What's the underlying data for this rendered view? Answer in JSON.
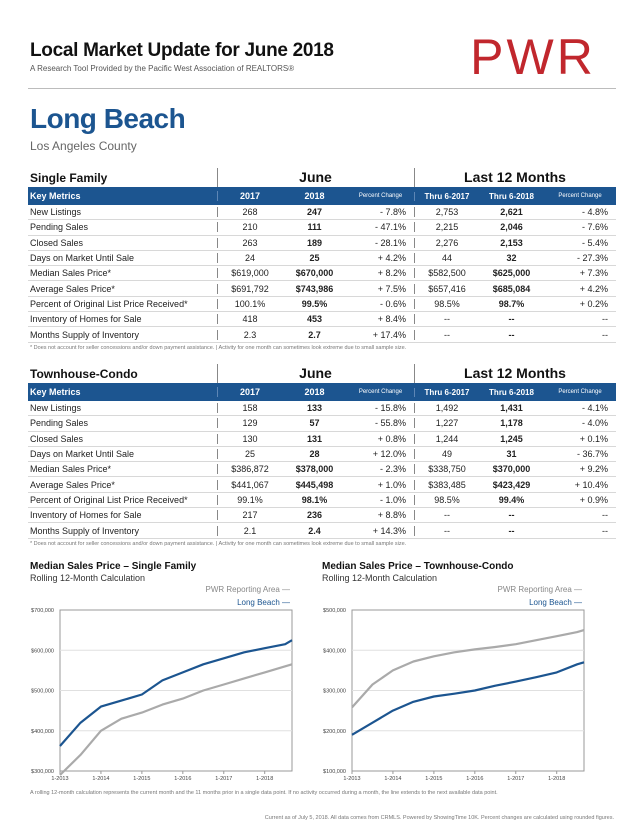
{
  "header": {
    "title": "Local Market Update for June 2018",
    "subtitle": "A Research Tool Provided by the Pacific West Association of REALTORS®",
    "logo_text": "PWR",
    "logo_color": "#c1272d"
  },
  "location": {
    "city": "Long Beach",
    "county": "Los Angeles County"
  },
  "tables": [
    {
      "category": "Single Family",
      "group_june": "June",
      "group_ltm": "Last 12 Months",
      "headers": [
        "Key Metrics",
        "2017",
        "2018",
        "Percent Change",
        "Thru 6-2017",
        "Thru 6-2018",
        "Percent Change"
      ],
      "rows": [
        [
          "New Listings",
          "268",
          "247",
          "- 7.8%",
          "2,753",
          "2,621",
          "- 4.8%"
        ],
        [
          "Pending Sales",
          "210",
          "111",
          "- 47.1%",
          "2,215",
          "2,046",
          "- 7.6%"
        ],
        [
          "Closed Sales",
          "263",
          "189",
          "- 28.1%",
          "2,276",
          "2,153",
          "- 5.4%"
        ],
        [
          "Days on Market Until Sale",
          "24",
          "25",
          "+ 4.2%",
          "44",
          "32",
          "- 27.3%"
        ],
        [
          "Median Sales Price*",
          "$619,000",
          "$670,000",
          "+ 8.2%",
          "$582,500",
          "$625,000",
          "+ 7.3%"
        ],
        [
          "Average Sales Price*",
          "$691,792",
          "$743,986",
          "+ 7.5%",
          "$657,416",
          "$685,084",
          "+ 4.2%"
        ],
        [
          "Percent of Original List Price Received*",
          "100.1%",
          "99.5%",
          "- 0.6%",
          "98.5%",
          "98.7%",
          "+ 0.2%"
        ],
        [
          "Inventory of Homes for Sale",
          "418",
          "453",
          "+ 8.4%",
          "--",
          "--",
          "--"
        ],
        [
          "Months Supply of Inventory",
          "2.3",
          "2.7",
          "+ 17.4%",
          "--",
          "--",
          "--"
        ]
      ],
      "note": "* Does not account for seller concessions and/or down payment assistance.  |  Activity for one month can sometimes look extreme due to small sample size."
    },
    {
      "category": "Townhouse-Condo",
      "group_june": "June",
      "group_ltm": "Last 12 Months",
      "headers": [
        "Key Metrics",
        "2017",
        "2018",
        "Percent Change",
        "Thru 6-2017",
        "Thru 6-2018",
        "Percent Change"
      ],
      "rows": [
        [
          "New Listings",
          "158",
          "133",
          "- 15.8%",
          "1,492",
          "1,431",
          "- 4.1%"
        ],
        [
          "Pending Sales",
          "129",
          "57",
          "- 55.8%",
          "1,227",
          "1,178",
          "- 4.0%"
        ],
        [
          "Closed Sales",
          "130",
          "131",
          "+ 0.8%",
          "1,244",
          "1,245",
          "+ 0.1%"
        ],
        [
          "Days on Market Until Sale",
          "25",
          "28",
          "+ 12.0%",
          "49",
          "31",
          "- 36.7%"
        ],
        [
          "Median Sales Price*",
          "$386,872",
          "$378,000",
          "- 2.3%",
          "$338,750",
          "$370,000",
          "+ 9.2%"
        ],
        [
          "Average Sales Price*",
          "$441,067",
          "$445,498",
          "+ 1.0%",
          "$383,485",
          "$423,429",
          "+ 10.4%"
        ],
        [
          "Percent of Original List Price Received*",
          "99.1%",
          "98.1%",
          "- 1.0%",
          "98.5%",
          "99.4%",
          "+ 0.9%"
        ],
        [
          "Inventory of Homes for Sale",
          "217",
          "236",
          "+ 8.8%",
          "--",
          "--",
          "--"
        ],
        [
          "Months Supply of Inventory",
          "2.1",
          "2.4",
          "+ 14.3%",
          "--",
          "--",
          "--"
        ]
      ],
      "note": "* Does not account for seller concessions and/or down payment assistance.  |  Activity for one month can sometimes look extreme due to small sample size."
    }
  ],
  "chart_data": [
    {
      "type": "line",
      "title": "Median Sales Price – Single Family",
      "subtitle": "Rolling 12-Month Calculation",
      "legend": [
        "PWR Reporting Area",
        "Long Beach"
      ],
      "legend_marker": "—",
      "yticks": [
        "$700,000",
        "$600,000",
        "$500,000",
        "$400,000",
        "$300,000"
      ],
      "xticks": [
        "1-2013",
        "1-2014",
        "1-2015",
        "1-2016",
        "1-2017",
        "1-2018"
      ],
      "ylim": [
        300000,
        700000
      ],
      "x": [
        0,
        6,
        12,
        18,
        24,
        30,
        36,
        42,
        48,
        54,
        60,
        66,
        68
      ],
      "series": [
        {
          "name": "PWR Reporting Area",
          "color": "#aaaaaa",
          "values": [
            290000,
            340000,
            400000,
            430000,
            445000,
            465000,
            480000,
            500000,
            515000,
            530000,
            545000,
            560000,
            565000
          ]
        },
        {
          "name": "Long Beach",
          "color": "#1c5590",
          "values": [
            362000,
            420000,
            460000,
            475000,
            490000,
            525000,
            545000,
            565000,
            580000,
            595000,
            605000,
            615000,
            625000
          ]
        }
      ]
    },
    {
      "type": "line",
      "title": "Median Sales Price – Townhouse-Condo",
      "subtitle": "Rolling 12-Month Calculation",
      "legend": [
        "PWR Reporting Area",
        "Long Beach"
      ],
      "legend_marker": "—",
      "yticks": [
        "$500,000",
        "$400,000",
        "$300,000",
        "$200,000",
        "$100,000"
      ],
      "xticks": [
        "1-2013",
        "1-2014",
        "1-2015",
        "1-2016",
        "1-2017",
        "1-2018"
      ],
      "ylim": [
        100000,
        500000
      ],
      "x": [
        0,
        6,
        12,
        18,
        24,
        30,
        36,
        42,
        48,
        54,
        60,
        66,
        68
      ],
      "series": [
        {
          "name": "PWR Reporting Area",
          "color": "#aaaaaa",
          "values": [
            258000,
            315000,
            350000,
            372000,
            385000,
            395000,
            402000,
            408000,
            415000,
            425000,
            435000,
            445000,
            450000
          ]
        },
        {
          "name": "Long Beach",
          "color": "#1c5590",
          "values": [
            190000,
            220000,
            250000,
            272000,
            285000,
            292000,
            300000,
            312000,
            322000,
            333000,
            345000,
            365000,
            370000
          ]
        }
      ]
    }
  ],
  "footer": {
    "note": "A rolling 12-month calculation represents the current month and the 11 months prior in a single data point. If no activity occurred during a month, the line extends to the next available data point.",
    "credit": "Current as of July 5, 2018. All data comes from CRMLS. Powered by ShowingTime 10K. Percent changes are calculated using rounded figures."
  }
}
